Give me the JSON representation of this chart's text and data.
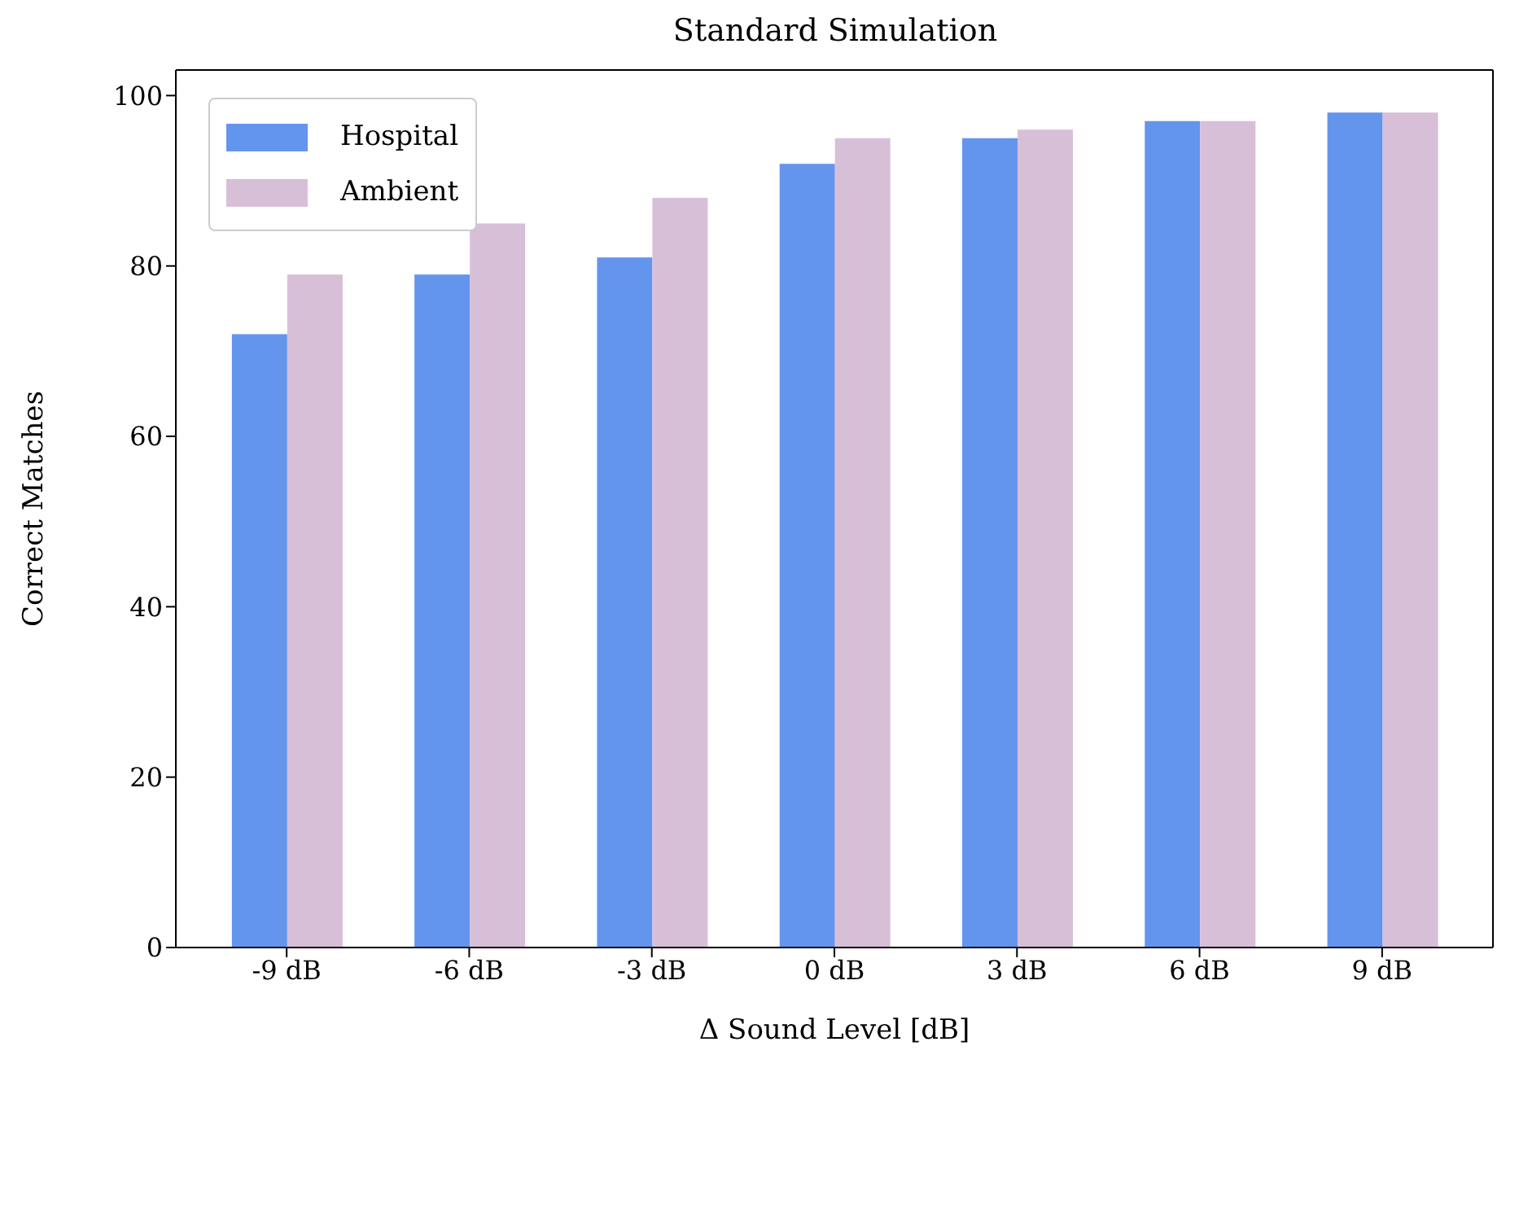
{
  "chart_data": {
    "type": "bar",
    "title": "Standard Simulation",
    "xlabel": "Δ Sound Level [dB]",
    "ylabel": "Correct Matches",
    "categories": [
      "-9 dB",
      "-6 dB",
      "-3 dB",
      "0 dB",
      "3 dB",
      "6 dB",
      "9 dB"
    ],
    "series": [
      {
        "name": "Hospital",
        "color": "#6495ed",
        "values": [
          72,
          79,
          81,
          92,
          95,
          97,
          98
        ]
      },
      {
        "name": "Ambient",
        "color": "#d8bfd8",
        "values": [
          79,
          85,
          88,
          95,
          96,
          97,
          98
        ]
      }
    ],
    "ylim": [
      0,
      103
    ],
    "yticks": [
      0,
      20,
      40,
      60,
      80,
      100
    ],
    "grid": false,
    "legend": "top left"
  }
}
